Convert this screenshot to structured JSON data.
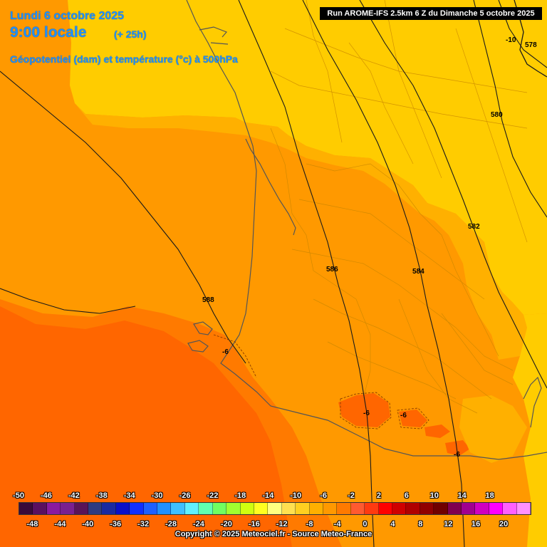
{
  "header": {
    "date": "Lundi 6 octobre 2025",
    "time": "9:00 locale",
    "offset": "(+ 25h)",
    "subtitle": "Géopotentiel (dam) et température (°c) à 500hPa",
    "run_info": "Run AROME-IFS 2.5km 6 Z du Dimanche 5 octobre 2025"
  },
  "geopotential_labels": [
    "578",
    "580",
    "582",
    "584",
    "586",
    "588"
  ],
  "temperature_labels": [
    "-10",
    "-6",
    "-6",
    "-6",
    "-6"
  ],
  "legend": {
    "upper_ticks": [
      "-50",
      "-46",
      "-42",
      "-38",
      "-34",
      "-30",
      "-26",
      "-22",
      "-18",
      "-14",
      "-10",
      "-6",
      "-2",
      "2",
      "6",
      "10",
      "14",
      "18"
    ],
    "lower_ticks": [
      "-48",
      "-44",
      "-40",
      "-36",
      "-32",
      "-28",
      "-24",
      "-20",
      "-16",
      "-12",
      "-8",
      "-4",
      "0",
      "4",
      "8",
      "12",
      "16",
      "20"
    ],
    "colors": [
      "#3a0a3a",
      "#5a1060",
      "#8a1aa0",
      "#7a2090",
      "#5a1458",
      "#2e3b80",
      "#1a2aa0",
      "#0a10c8",
      "#1030ff",
      "#1e60ff",
      "#2090ff",
      "#40c0ff",
      "#60f0ff",
      "#60ffb0",
      "#70ff60",
      "#a0ff30",
      "#d0ff10",
      "#ffff20",
      "#ffff80",
      "#ffe050",
      "#ffd020",
      "#ffb000",
      "#ff9900",
      "#ff7a00",
      "#ff5a30",
      "#ff3a10",
      "#ff0000",
      "#d00000",
      "#b00000",
      "#900000",
      "#700000",
      "#800050",
      "#a00090",
      "#d000c0",
      "#ff00ff",
      "#ff60ff",
      "#ff90ff"
    ]
  },
  "footer": {
    "copyright": "Copyright © 2025 Meteociel.fr - Source Meteo-France"
  },
  "colors": {
    "title_blue": "#1e90ff",
    "temp_yellow": "#ffcc00",
    "temp_light_orange": "#ffb000",
    "temp_orange": "#ff9900",
    "temp_dark_orange": "#ff7a00",
    "temp_red_orange": "#ff6600"
  }
}
